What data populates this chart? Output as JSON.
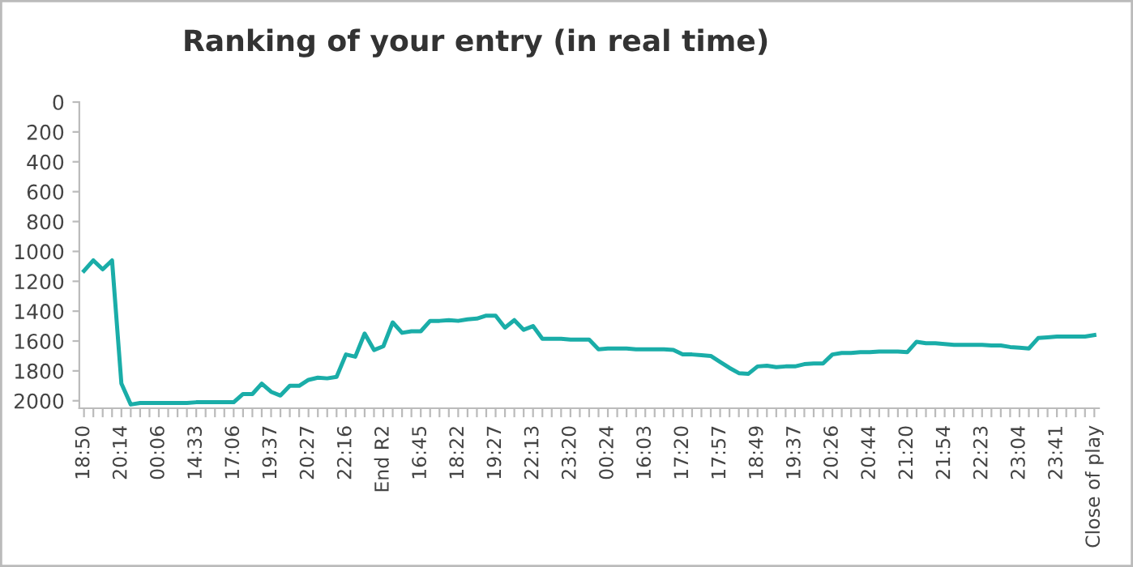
{
  "chart_data": {
    "type": "line",
    "title": "Ranking of your entry (in real time)",
    "categories": [
      "18:50",
      null,
      null,
      null,
      "20:14",
      null,
      null,
      null,
      "00:06",
      null,
      null,
      null,
      "14:33",
      null,
      null,
      null,
      "17:06",
      null,
      null,
      null,
      "19:37",
      null,
      null,
      null,
      "20:27",
      null,
      null,
      null,
      "22:16",
      null,
      null,
      null,
      "End R2",
      null,
      null,
      null,
      "16:45",
      null,
      null,
      null,
      "18:22",
      null,
      null,
      null,
      "19:27",
      null,
      null,
      null,
      "22:13",
      null,
      null,
      null,
      "23:20",
      null,
      null,
      null,
      "00:24",
      null,
      null,
      null,
      "16:03",
      null,
      null,
      null,
      "17:20",
      null,
      null,
      null,
      "17:57",
      null,
      null,
      null,
      "18:49",
      null,
      null,
      null,
      "19:37",
      null,
      null,
      null,
      "20:26",
      null,
      null,
      null,
      "20:44",
      null,
      null,
      null,
      "21:20",
      null,
      null,
      null,
      "21:54",
      null,
      null,
      null,
      "22:23",
      null,
      null,
      null,
      "23:04",
      null,
      null,
      null,
      "23:41",
      null,
      null,
      null,
      "Close of play"
    ],
    "series": [
      {
        "color": "#1aada8",
        "values": [
          1130,
          1060,
          1120,
          1060,
          1885,
          2025,
          2015,
          2015,
          2015,
          2015,
          2015,
          2015,
          2010,
          2010,
          2010,
          2010,
          2010,
          1955,
          1955,
          1885,
          1940,
          1965,
          1900,
          1900,
          1860,
          1845,
          1850,
          1840,
          1690,
          1705,
          1550,
          1660,
          1635,
          1475,
          1545,
          1535,
          1535,
          1465,
          1465,
          1460,
          1465,
          1455,
          1450,
          1430,
          1430,
          1510,
          1460,
          1525,
          1500,
          1585,
          1585,
          1585,
          1590,
          1590,
          1590,
          1655,
          1650,
          1650,
          1650,
          1655,
          1655,
          1655,
          1655,
          1660,
          1690,
          1690,
          1695,
          1700,
          1740,
          1780,
          1815,
          1820,
          1770,
          1765,
          1775,
          1770,
          1770,
          1755,
          1750,
          1750,
          1690,
          1680,
          1680,
          1675,
          1675,
          1670,
          1670,
          1670,
          1675,
          1605,
          1615,
          1615,
          1620,
          1625,
          1625,
          1625,
          1625,
          1630,
          1630,
          1640,
          1645,
          1650,
          1580,
          1575,
          1570,
          1570,
          1570,
          1570,
          1560
        ]
      }
    ],
    "ylim": [
      2050,
      0
    ],
    "yticks": [
      0,
      200,
      400,
      600,
      800,
      1000,
      1200,
      1400,
      1600,
      1800,
      2000
    ],
    "grid": false,
    "marker": "none",
    "line_style": "solid"
  }
}
